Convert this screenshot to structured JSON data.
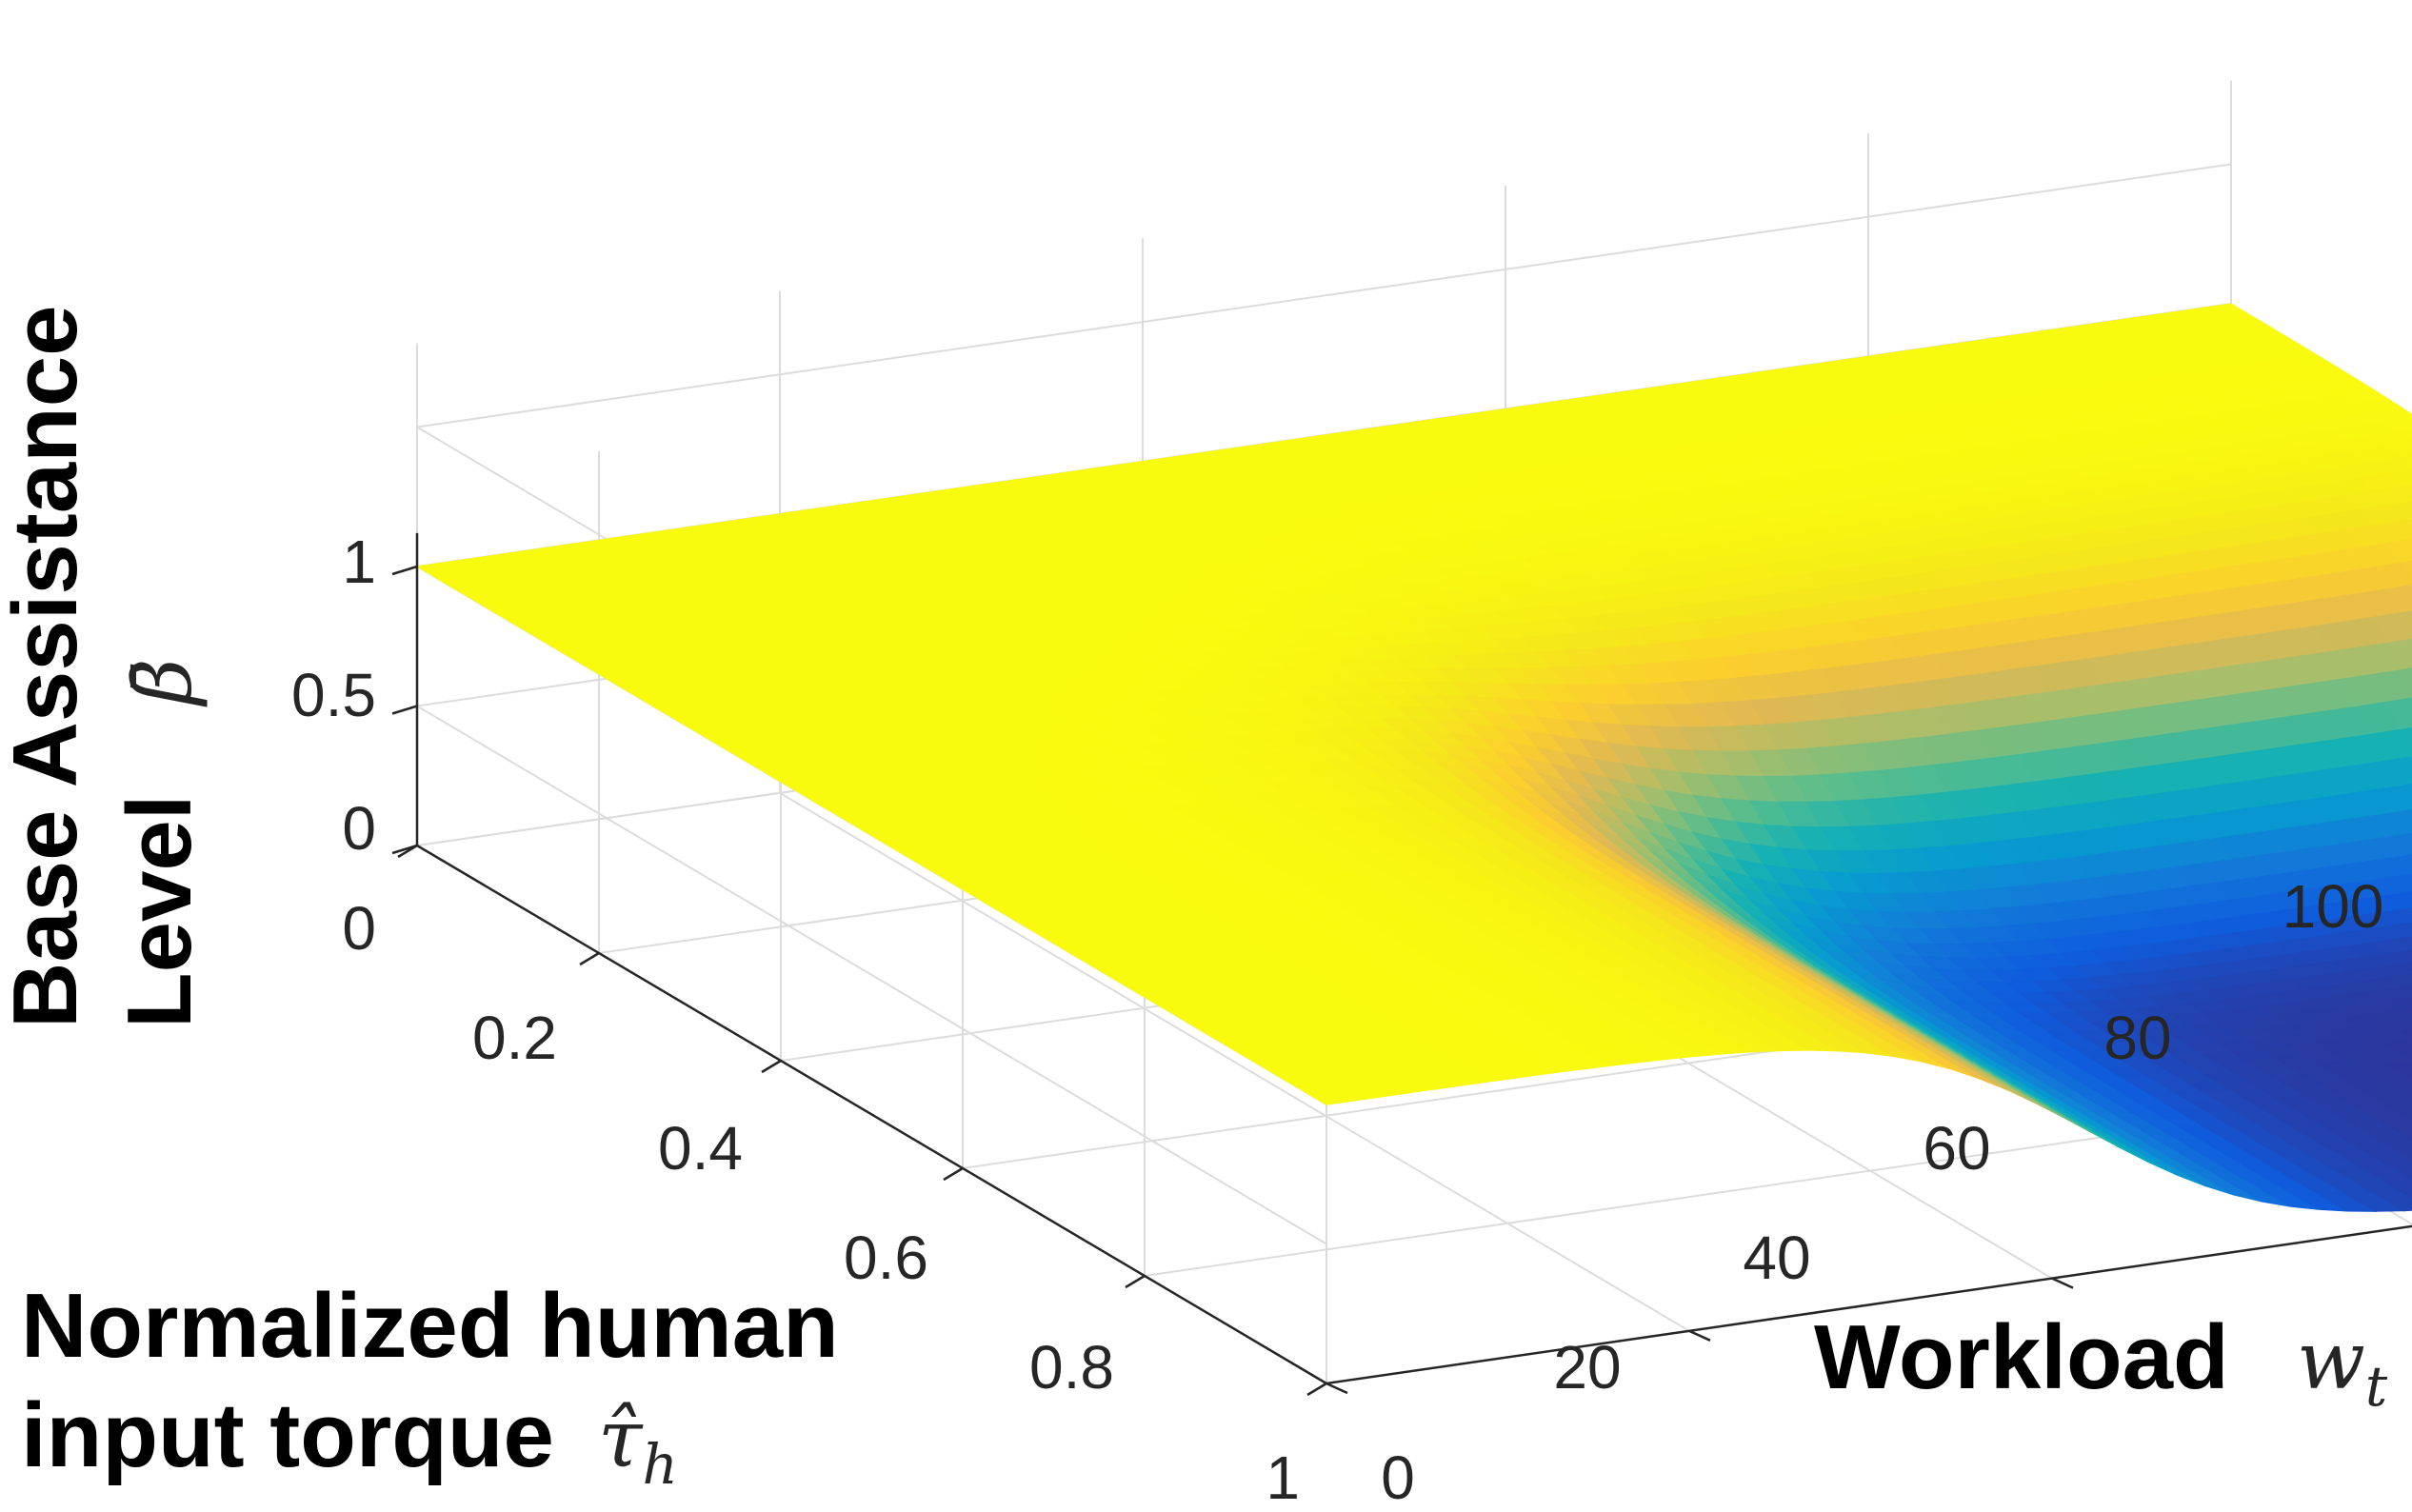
{
  "chart_data": {
    "type": "surface",
    "x": {
      "label_text": "Workload",
      "label_symbol": "w",
      "label_subscript": "t",
      "range": [
        0,
        100
      ],
      "ticks": [
        "0",
        "20",
        "40",
        "60",
        "80",
        "100"
      ]
    },
    "y": {
      "label_lines": [
        "Normalized human",
        "input torque"
      ],
      "label_symbol": "τ̂",
      "label_subscript": "h",
      "range": [
        0,
        1
      ],
      "ticks": [
        "0",
        "0.2",
        "0.4",
        "0.6",
        "0.8",
        "1"
      ]
    },
    "z": {
      "label_lines": [
        "Base Assistance",
        "Level"
      ],
      "label_symbol": "β̄",
      "range": [
        0,
        1
      ],
      "ticks": [
        "0",
        "0.5",
        "1"
      ]
    },
    "grid": true,
    "colormap": "parula",
    "surface_description_values": {
      "plateau": 1,
      "valley_min": 0.02,
      "valley_workload_range": [
        38,
        100
      ],
      "valley_torque_range": [
        0.35,
        1
      ]
    }
  }
}
